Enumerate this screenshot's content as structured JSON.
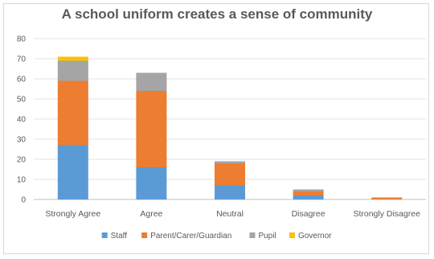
{
  "chart_data": {
    "type": "bar",
    "stacked": true,
    "title": "A school uniform creates a sense of community",
    "categories": [
      "Strongly Agree",
      "Agree",
      "Neutral",
      "Disagree",
      "Strongly Disagree"
    ],
    "series": [
      {
        "name": "Staff",
        "color": "#5b9bd5",
        "values": [
          27,
          16,
          7,
          2,
          0
        ]
      },
      {
        "name": "Parent/Carer/Guardian",
        "color": "#ed7d31",
        "values": [
          32,
          38,
          11,
          2,
          1
        ]
      },
      {
        "name": "Pupil",
        "color": "#a5a5a5",
        "values": [
          10,
          9,
          1,
          1,
          0
        ]
      },
      {
        "name": "Governor",
        "color": "#ffc000",
        "values": [
          2,
          0,
          0,
          0,
          0
        ]
      }
    ],
    "ylim": [
      0,
      80
    ],
    "yticks": [
      0,
      10,
      20,
      30,
      40,
      50,
      60,
      70,
      80
    ],
    "grid": true,
    "legend_position": "bottom"
  }
}
